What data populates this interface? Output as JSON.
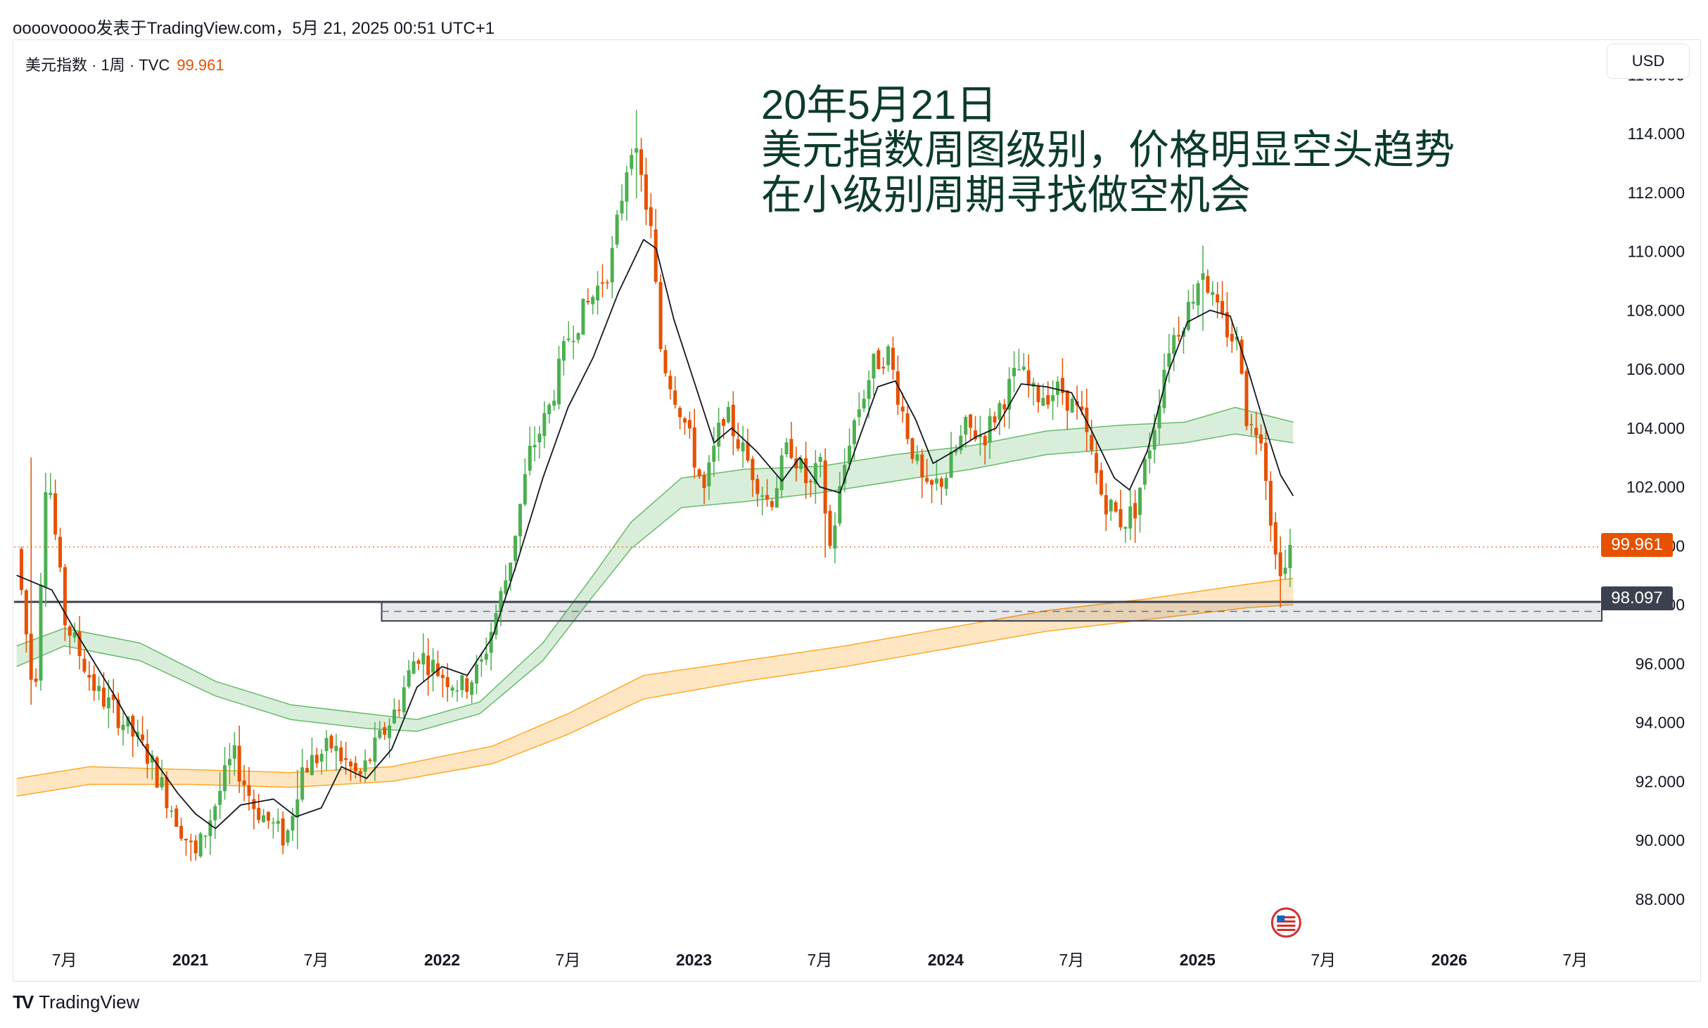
{
  "header": {
    "caption": "oooovoooo发表于TradingView.com，5月 21, 2025 00:51 UTC+1"
  },
  "legend": {
    "symbol": "美元指数 · 1周 · TVC",
    "last_price": "99.961"
  },
  "currency_button": "USD",
  "annotation": {
    "lines": [
      "20年5月21日",
      "美元指数周图级别，价格明显空头趋势",
      "在小级别周期寻找做空机会"
    ]
  },
  "price_tags": {
    "last": "99.961",
    "level": "98.097"
  },
  "footer": {
    "brand": "TradingView",
    "logo_text": "TV"
  },
  "colors": {
    "up": "#4caf50",
    "down": "#e65100",
    "ma": "#131722",
    "green_band": "#66bb6a",
    "orange_band": "#ffa726",
    "level_line": "#3c4150"
  },
  "chart_data": {
    "type": "candlestick",
    "ylim": [
      86.3,
      117.2
    ],
    "y_ticks": [
      "116.000",
      "114.000",
      "112.000",
      "110.000",
      "108.000",
      "106.000",
      "104.000",
      "102.000",
      "100.000",
      "98.000",
      "96.000",
      "94.000",
      "92.000",
      "90.000",
      "88.000"
    ],
    "x_ticks": [
      {
        "label": "7月",
        "t": 2020.5,
        "bold": false
      },
      {
        "label": "2021",
        "t": 2021.0,
        "bold": true
      },
      {
        "label": "7月",
        "t": 2021.5,
        "bold": false
      },
      {
        "label": "2022",
        "t": 2022.0,
        "bold": true
      },
      {
        "label": "7月",
        "t": 2022.5,
        "bold": false
      },
      {
        "label": "2023",
        "t": 2023.0,
        "bold": true
      },
      {
        "label": "7月",
        "t": 2023.5,
        "bold": false
      },
      {
        "label": "2024",
        "t": 2024.0,
        "bold": true
      },
      {
        "label": "7月",
        "t": 2024.5,
        "bold": false
      },
      {
        "label": "2025",
        "t": 2025.0,
        "bold": true
      },
      {
        "label": "7月",
        "t": 2025.5,
        "bold": false
      },
      {
        "label": "2026",
        "t": 2026.0,
        "bold": true
      },
      {
        "label": "7月",
        "t": 2026.5,
        "bold": false
      }
    ],
    "last_price": 99.961,
    "horizontal_level": 98.097,
    "support_zone": {
      "low": 97.45,
      "high": 98.1,
      "from_t": 2021.76
    },
    "price_path": [
      [
        2020.31,
        99.9
      ],
      [
        2020.38,
        94.6
      ],
      [
        2020.43,
        103.0
      ],
      [
        2020.5,
        97.5
      ],
      [
        2020.63,
        95.0
      ],
      [
        2020.7,
        94.4
      ],
      [
        2020.83,
        92.9
      ],
      [
        2020.96,
        90.5
      ],
      [
        2021.02,
        89.4
      ],
      [
        2021.08,
        90.8
      ],
      [
        2021.17,
        92.9
      ],
      [
        2021.25,
        91.2
      ],
      [
        2021.38,
        90.0
      ],
      [
        2021.44,
        92.4
      ],
      [
        2021.56,
        93.2
      ],
      [
        2021.67,
        92.1
      ],
      [
        2021.82,
        94.5
      ],
      [
        2021.9,
        96.4
      ],
      [
        2021.99,
        95.7
      ],
      [
        2022.08,
        95.2
      ],
      [
        2022.15,
        95.8
      ],
      [
        2022.26,
        99.1
      ],
      [
        2022.35,
        103.2
      ],
      [
        2022.42,
        104.5
      ],
      [
        2022.5,
        107.1
      ],
      [
        2022.6,
        108.5
      ],
      [
        2022.67,
        109.6
      ],
      [
        2022.75,
        113.8
      ],
      [
        2022.8,
        112.1
      ],
      [
        2022.83,
        110.6
      ],
      [
        2022.87,
        106.5
      ],
      [
        2022.96,
        104.3
      ],
      [
        2023.04,
        101.8
      ],
      [
        2023.12,
        104.6
      ],
      [
        2023.2,
        103.1
      ],
      [
        2023.3,
        101.4
      ],
      [
        2023.38,
        103.5
      ],
      [
        2023.46,
        101.9
      ],
      [
        2023.5,
        102.8
      ],
      [
        2023.54,
        99.9
      ],
      [
        2023.62,
        103.8
      ],
      [
        2023.71,
        106.1
      ],
      [
        2023.77,
        106.6
      ],
      [
        2023.85,
        103.8
      ],
      [
        2023.92,
        101.7
      ],
      [
        2024.0,
        102.4
      ],
      [
        2024.08,
        104.0
      ],
      [
        2024.15,
        103.7
      ],
      [
        2024.29,
        106.0
      ],
      [
        2024.35,
        105.1
      ],
      [
        2024.46,
        105.3
      ],
      [
        2024.54,
        104.3
      ],
      [
        2024.62,
        101.7
      ],
      [
        2024.7,
        100.8
      ],
      [
        2024.75,
        101.2
      ],
      [
        2024.83,
        104.2
      ],
      [
        2024.88,
        106.7
      ],
      [
        2024.96,
        108.0
      ],
      [
        2025.02,
        109.5
      ],
      [
        2025.07,
        108.0
      ],
      [
        2025.12,
        107.3
      ],
      [
        2025.17,
        106.7
      ],
      [
        2025.2,
        103.9
      ],
      [
        2025.25,
        104.1
      ],
      [
        2025.31,
        99.6
      ],
      [
        2025.35,
        99.2
      ],
      [
        2025.38,
        100.4
      ]
    ],
    "spikes": [
      [
        2020.37,
        103.0,
        94.6
      ],
      [
        2021.43,
        92.4,
        89.7
      ],
      [
        2022.77,
        114.8,
        111.8
      ],
      [
        2023.53,
        102.5,
        99.6
      ],
      [
        2024.75,
        101.9,
        100.1
      ],
      [
        2025.02,
        110.2,
        107.3
      ],
      [
        2025.33,
        100.2,
        97.9
      ]
    ],
    "ma_path": [
      [
        2020.31,
        99.0
      ],
      [
        2020.45,
        98.5
      ],
      [
        2020.55,
        97.0
      ],
      [
        2020.7,
        94.9
      ],
      [
        2020.8,
        93.4
      ],
      [
        2020.95,
        91.6
      ],
      [
        2021.02,
        90.9
      ],
      [
        2021.1,
        90.4
      ],
      [
        2021.2,
        91.2
      ],
      [
        2021.33,
        91.4
      ],
      [
        2021.42,
        90.8
      ],
      [
        2021.52,
        91.1
      ],
      [
        2021.6,
        92.5
      ],
      [
        2021.7,
        92.1
      ],
      [
        2021.8,
        93.1
      ],
      [
        2021.9,
        95.2
      ],
      [
        2022.0,
        95.9
      ],
      [
        2022.1,
        95.6
      ],
      [
        2022.2,
        96.9
      ],
      [
        2022.3,
        99.5
      ],
      [
        2022.4,
        102.3
      ],
      [
        2022.5,
        104.7
      ],
      [
        2022.6,
        106.4
      ],
      [
        2022.7,
        108.6
      ],
      [
        2022.8,
        110.4
      ],
      [
        2022.85,
        110.1
      ],
      [
        2022.92,
        107.7
      ],
      [
        2023.0,
        105.6
      ],
      [
        2023.08,
        103.5
      ],
      [
        2023.15,
        104.0
      ],
      [
        2023.25,
        103.2
      ],
      [
        2023.35,
        102.2
      ],
      [
        2023.42,
        103.0
      ],
      [
        2023.5,
        102.0
      ],
      [
        2023.58,
        101.8
      ],
      [
        2023.65,
        103.5
      ],
      [
        2023.73,
        105.4
      ],
      [
        2023.8,
        105.6
      ],
      [
        2023.88,
        104.3
      ],
      [
        2023.95,
        102.8
      ],
      [
        2024.03,
        103.2
      ],
      [
        2024.12,
        103.7
      ],
      [
        2024.2,
        104.0
      ],
      [
        2024.3,
        105.5
      ],
      [
        2024.4,
        105.4
      ],
      [
        2024.5,
        105.2
      ],
      [
        2024.58,
        103.9
      ],
      [
        2024.67,
        102.3
      ],
      [
        2024.73,
        101.9
      ],
      [
        2024.8,
        103.2
      ],
      [
        2024.88,
        105.8
      ],
      [
        2024.96,
        107.6
      ],
      [
        2025.05,
        108.0
      ],
      [
        2025.13,
        107.8
      ],
      [
        2025.2,
        106.0
      ],
      [
        2025.27,
        104.0
      ],
      [
        2025.33,
        102.4
      ],
      [
        2025.38,
        101.7
      ]
    ],
    "green_band": {
      "upper": [
        [
          2020.31,
          96.6
        ],
        [
          2020.5,
          97.2
        ],
        [
          2020.8,
          96.7
        ],
        [
          2021.1,
          95.4
        ],
        [
          2021.4,
          94.6
        ],
        [
          2021.7,
          94.3
        ],
        [
          2021.9,
          94.1
        ],
        [
          2022.15,
          94.7
        ],
        [
          2022.4,
          96.7
        ],
        [
          2022.6,
          99.0
        ],
        [
          2022.75,
          100.8
        ],
        [
          2022.95,
          102.3
        ],
        [
          2023.2,
          102.6
        ],
        [
          2023.5,
          102.7
        ],
        [
          2023.8,
          103.1
        ],
        [
          2024.1,
          103.4
        ],
        [
          2024.4,
          103.9
        ],
        [
          2024.7,
          104.1
        ],
        [
          2024.95,
          104.2
        ],
        [
          2025.15,
          104.7
        ],
        [
          2025.38,
          104.2
        ]
      ],
      "lower": [
        [
          2020.31,
          95.9
        ],
        [
          2020.5,
          96.6
        ],
        [
          2020.8,
          96.1
        ],
        [
          2021.1,
          94.9
        ],
        [
          2021.4,
          94.1
        ],
        [
          2021.7,
          93.8
        ],
        [
          2021.9,
          93.7
        ],
        [
          2022.15,
          94.3
        ],
        [
          2022.4,
          96.1
        ],
        [
          2022.6,
          98.3
        ],
        [
          2022.75,
          99.9
        ],
        [
          2022.95,
          101.3
        ],
        [
          2023.2,
          101.5
        ],
        [
          2023.5,
          101.8
        ],
        [
          2023.8,
          102.2
        ],
        [
          2024.1,
          102.6
        ],
        [
          2024.4,
          103.1
        ],
        [
          2024.7,
          103.3
        ],
        [
          2024.95,
          103.5
        ],
        [
          2025.15,
          103.8
        ],
        [
          2025.38,
          103.5
        ]
      ]
    },
    "orange_band": {
      "upper": [
        [
          2020.31,
          92.1
        ],
        [
          2020.6,
          92.5
        ],
        [
          2021.0,
          92.4
        ],
        [
          2021.4,
          92.3
        ],
        [
          2021.8,
          92.5
        ],
        [
          2022.2,
          93.2
        ],
        [
          2022.5,
          94.3
        ],
        [
          2022.8,
          95.6
        ],
        [
          2023.2,
          96.1
        ],
        [
          2023.6,
          96.6
        ],
        [
          2024.0,
          97.2
        ],
        [
          2024.4,
          97.8
        ],
        [
          2024.8,
          98.2
        ],
        [
          2025.2,
          98.7
        ],
        [
          2025.38,
          98.9
        ]
      ],
      "lower": [
        [
          2020.31,
          91.5
        ],
        [
          2020.6,
          91.9
        ],
        [
          2021.0,
          91.9
        ],
        [
          2021.4,
          91.8
        ],
        [
          2021.8,
          92.0
        ],
        [
          2022.2,
          92.6
        ],
        [
          2022.5,
          93.6
        ],
        [
          2022.8,
          94.8
        ],
        [
          2023.2,
          95.4
        ],
        [
          2023.6,
          95.9
        ],
        [
          2024.0,
          96.5
        ],
        [
          2024.4,
          97.1
        ],
        [
          2024.8,
          97.5
        ],
        [
          2025.2,
          97.9
        ],
        [
          2025.38,
          98.0
        ]
      ]
    },
    "last_candle_marker": {
      "t": 2025.38
    }
  }
}
